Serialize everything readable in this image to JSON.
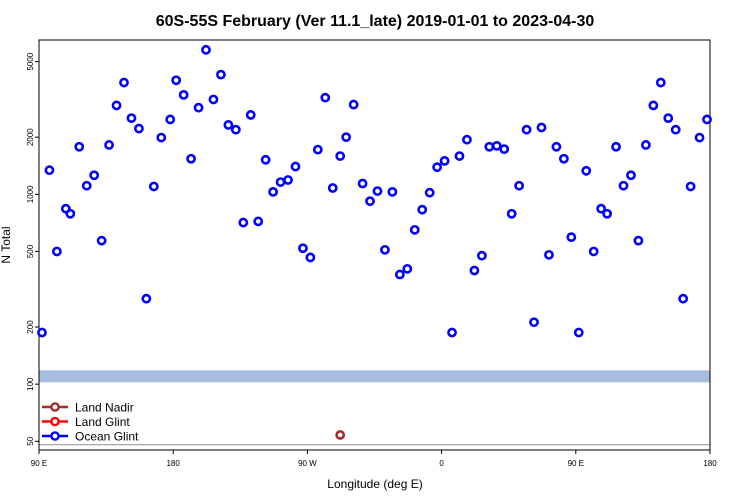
{
  "chart_data": {
    "type": "scatter",
    "title": "60S-55S February (Ver 11.1_late)   2019-01-01 to 2023-04-30",
    "xlabel": "Longitude (deg E)",
    "ylabel": "N Total",
    "x_ticks": [
      {
        "label": "90 E",
        "value": 90
      },
      {
        "label": "180",
        "value": 180
      },
      {
        "label": "90 W",
        "value": 270
      },
      {
        "label": "0",
        "value": 360
      },
      {
        "label": "90 E",
        "value": 450
      },
      {
        "label": "180",
        "value": 540
      }
    ],
    "xlim": [
      90,
      540
    ],
    "y_scale": "log",
    "y_ticks": [
      50,
      100,
      200,
      500,
      1000,
      2000,
      5000
    ],
    "ylim": [
      45,
      6500
    ],
    "band": {
      "value": 110,
      "color": "#a7bde0"
    },
    "baseline": {
      "value": 48,
      "color": "#999999"
    },
    "legend_position": "bottom-left",
    "series": [
      {
        "name": "Land Nadir",
        "color": "#a52a2a",
        "points": [
          [
            292,
            54
          ]
        ]
      },
      {
        "name": "Land Glint",
        "color": "#ff0000",
        "points": []
      },
      {
        "name": "Ocean Glint",
        "color": "#0000ff",
        "points": [
          [
            92,
            187
          ],
          [
            97,
            1340
          ],
          [
            102,
            500
          ],
          [
            108,
            840
          ],
          [
            111,
            790
          ],
          [
            117,
            1780
          ],
          [
            122,
            1110
          ],
          [
            127,
            1260
          ],
          [
            132,
            570
          ],
          [
            137,
            1820
          ],
          [
            142,
            2940
          ],
          [
            147,
            3880
          ],
          [
            152,
            2520
          ],
          [
            157,
            2220
          ],
          [
            162,
            282
          ],
          [
            167,
            1100
          ],
          [
            172,
            1990
          ],
          [
            178,
            2480
          ],
          [
            182,
            3990
          ],
          [
            187,
            3340
          ],
          [
            192,
            1540
          ],
          [
            197,
            2860
          ],
          [
            202,
            5770
          ],
          [
            207,
            3160
          ],
          [
            212,
            4270
          ],
          [
            217,
            2320
          ],
          [
            222,
            2190
          ],
          [
            227,
            710
          ],
          [
            232,
            2620
          ],
          [
            237,
            720
          ],
          [
            242,
            1520
          ],
          [
            247,
            1030
          ],
          [
            252,
            1160
          ],
          [
            257,
            1190
          ],
          [
            262,
            1400
          ],
          [
            267,
            520
          ],
          [
            272,
            465
          ],
          [
            277,
            1720
          ],
          [
            282,
            3230
          ],
          [
            287,
            1080
          ],
          [
            292,
            1590
          ],
          [
            296,
            2000
          ],
          [
            301,
            2970
          ],
          [
            307,
            1140
          ],
          [
            312,
            920
          ],
          [
            317,
            1040
          ],
          [
            322,
            510
          ],
          [
            327,
            1030
          ],
          [
            332,
            378
          ],
          [
            337,
            405
          ],
          [
            342,
            650
          ],
          [
            347,
            830
          ],
          [
            352,
            1020
          ],
          [
            357,
            1390
          ],
          [
            362,
            1500
          ],
          [
            367,
            187
          ],
          [
            372,
            1590
          ],
          [
            377,
            1940
          ],
          [
            382,
            397
          ],
          [
            387,
            475
          ],
          [
            392,
            1780
          ],
          [
            397,
            1800
          ],
          [
            402,
            1730
          ],
          [
            407,
            790
          ],
          [
            412,
            1110
          ],
          [
            417,
            2190
          ],
          [
            422,
            212
          ],
          [
            427,
            2250
          ],
          [
            432,
            480
          ],
          [
            437,
            1780
          ],
          [
            442,
            1540
          ],
          [
            447,
            595
          ],
          [
            452,
            187
          ],
          [
            457,
            1330
          ],
          [
            462,
            500
          ],
          [
            467,
            840
          ],
          [
            471,
            790
          ],
          [
            477,
            1780
          ],
          [
            482,
            1110
          ],
          [
            487,
            1260
          ],
          [
            492,
            570
          ],
          [
            497,
            1820
          ],
          [
            502,
            2940
          ],
          [
            507,
            3880
          ],
          [
            512,
            2520
          ],
          [
            517,
            2190
          ],
          [
            522,
            282
          ],
          [
            527,
            1100
          ],
          [
            533,
            1990
          ],
          [
            538,
            2480
          ]
        ]
      }
    ]
  }
}
